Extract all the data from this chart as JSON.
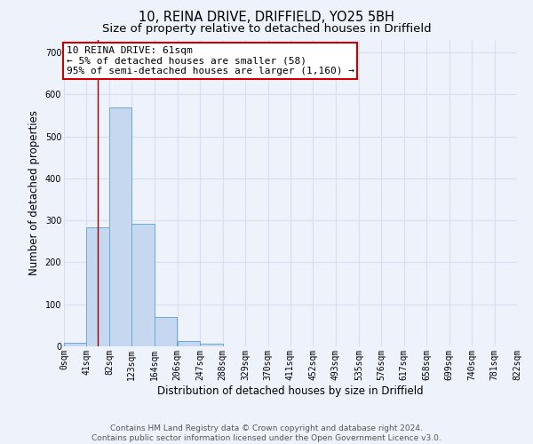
{
  "title": "10, REINA DRIVE, DRIFFIELD, YO25 5BH",
  "subtitle": "Size of property relative to detached houses in Driffield",
  "xlabel": "Distribution of detached houses by size in Driffield",
  "ylabel": "Number of detached properties",
  "bin_edges": [
    0,
    41,
    82,
    123,
    164,
    206,
    247,
    288,
    329,
    370,
    411,
    452,
    493,
    535,
    576,
    617,
    658,
    699,
    740,
    781,
    822
  ],
  "bin_labels": [
    "0sqm",
    "41sqm",
    "82sqm",
    "123sqm",
    "164sqm",
    "206sqm",
    "247sqm",
    "288sqm",
    "329sqm",
    "370sqm",
    "411sqm",
    "452sqm",
    "493sqm",
    "535sqm",
    "576sqm",
    "617sqm",
    "658sqm",
    "699sqm",
    "740sqm",
    "781sqm",
    "822sqm"
  ],
  "bar_heights": [
    8,
    283,
    570,
    293,
    70,
    13,
    7,
    0,
    0,
    0,
    0,
    0,
    0,
    0,
    0,
    0,
    0,
    0,
    0,
    0
  ],
  "bar_color": "#c5d8f0",
  "bar_edge_color": "#6aaad4",
  "red_line_x": 61,
  "annotation_line1": "10 REINA DRIVE: 61sqm",
  "annotation_line2": "← 5% of detached houses are smaller (58)",
  "annotation_line3": "95% of semi-detached houses are larger (1,160) →",
  "annotation_box_color": "#ffffff",
  "annotation_box_edge_color": "#cc0000",
  "ylim": [
    0,
    730
  ],
  "yticks": [
    0,
    100,
    200,
    300,
    400,
    500,
    600,
    700
  ],
  "footer_line1": "Contains HM Land Registry data © Crown copyright and database right 2024.",
  "footer_line2": "Contains public sector information licensed under the Open Government Licence v3.0.",
  "background_color": "#eef2fb",
  "grid_color": "#d8dff0",
  "title_fontsize": 10.5,
  "subtitle_fontsize": 9.5,
  "label_fontsize": 8.5,
  "tick_fontsize": 7,
  "annotation_fontsize": 8,
  "footer_fontsize": 6.5
}
